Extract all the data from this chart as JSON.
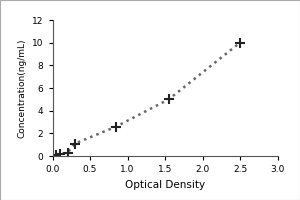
{
  "x": [
    0.05,
    0.1,
    0.2,
    0.3,
    0.85,
    1.55,
    2.5
  ],
  "y": [
    0.05,
    0.15,
    0.3,
    1.1,
    2.6,
    5.0,
    10.0
  ],
  "xlabel": "Optical Density",
  "ylabel": "Concentration(ng/mL)",
  "xlim": [
    0,
    3
  ],
  "ylim": [
    0,
    12
  ],
  "xticks": [
    0,
    0.5,
    1,
    1.5,
    2,
    2.5,
    3
  ],
  "yticks": [
    0,
    2,
    4,
    6,
    8,
    10,
    12
  ],
  "line_color": "#666666",
  "marker": "+",
  "marker_size": 7,
  "marker_color": "#222222",
  "line_style": "dotted",
  "line_width": 1.8,
  "background_color": "#ffffff",
  "ylabel_fontsize": 6.5,
  "xlabel_fontsize": 7.5,
  "tick_fontsize": 6.5,
  "marker_edge_width": 1.5,
  "outer_border_color": "#aaaaaa",
  "outer_border_linewidth": 0.8
}
